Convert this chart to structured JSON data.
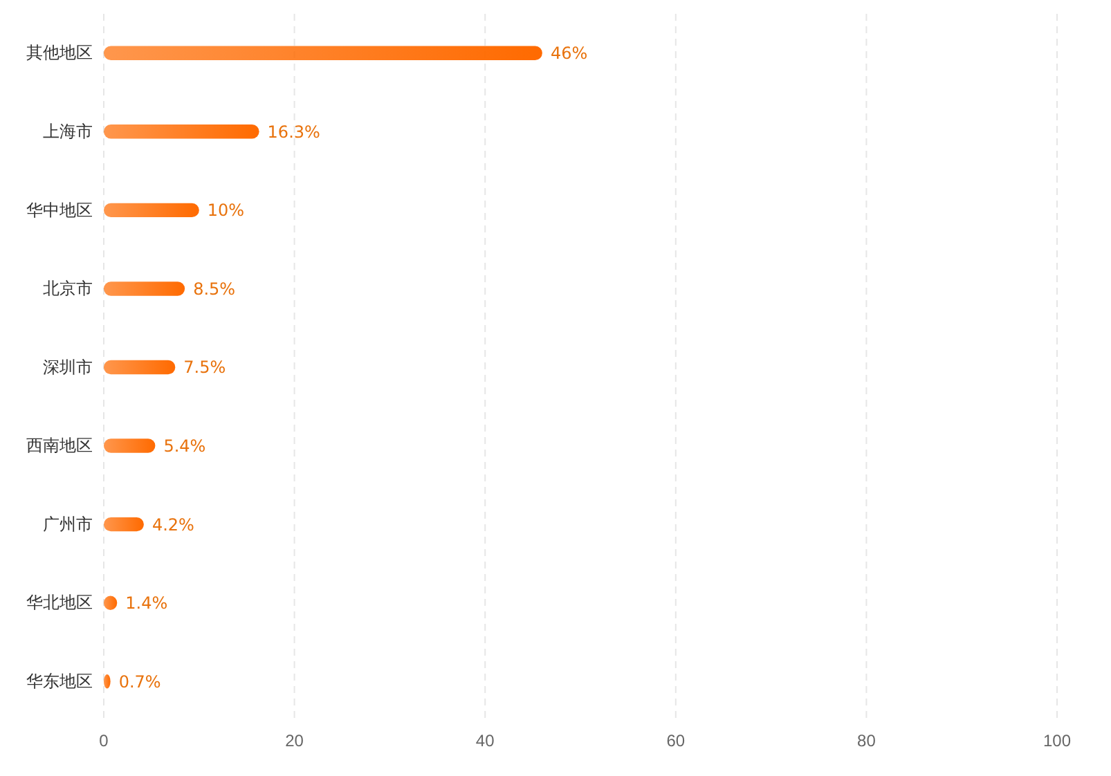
{
  "chart_data": {
    "type": "bar",
    "orientation": "horizontal",
    "categories": [
      "其他地区",
      "上海市",
      "华中地区",
      "北京市",
      "深圳市",
      "西南地区",
      "广州市",
      "华北地区",
      "华东地区"
    ],
    "values": [
      46,
      16.3,
      10,
      8.5,
      7.5,
      5.4,
      4.2,
      1.4,
      0.7
    ],
    "value_labels": [
      "46%",
      "16.3%",
      "10%",
      "8.5%",
      "7.5%",
      "5.4%",
      "4.2%",
      "1.4%",
      "0.7%"
    ],
    "color": "#ff6a00",
    "xlim": [
      0,
      100
    ],
    "xticks": [
      0,
      20,
      40,
      60,
      80,
      100
    ],
    "grid": "x"
  }
}
